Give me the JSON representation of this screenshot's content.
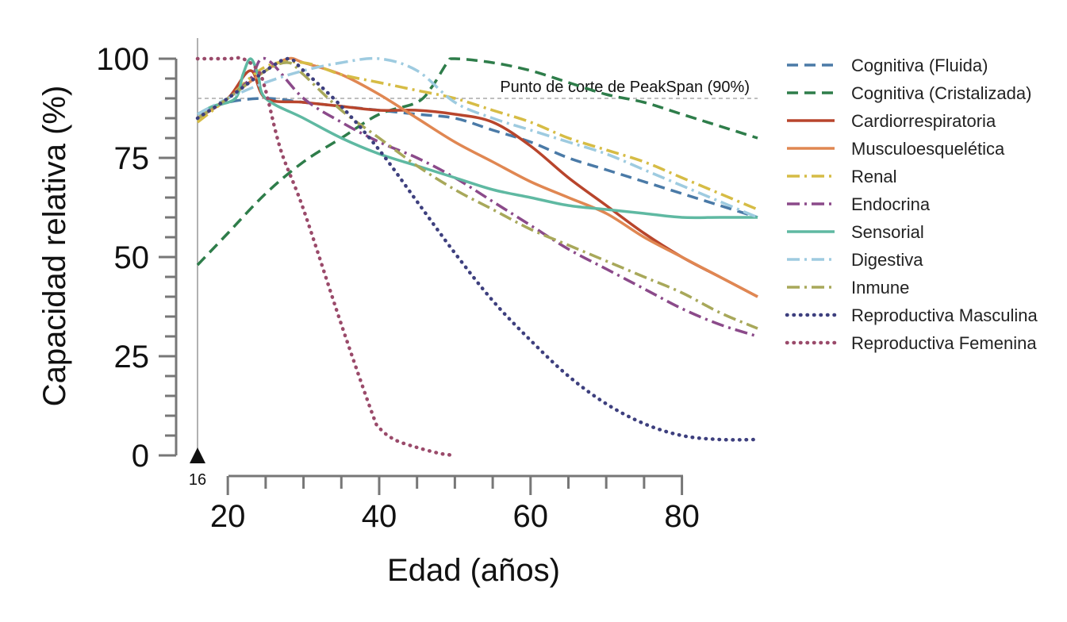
{
  "chart_data": {
    "type": "line",
    "title": "",
    "xlabel": "Edad (años)",
    "ylabel": "Capacidad relativa (%)",
    "xlim": [
      16,
      90
    ],
    "ylim": [
      0,
      100
    ],
    "x_ticks": [
      20,
      40,
      60,
      80
    ],
    "y_ticks": [
      0,
      25,
      50,
      75,
      100
    ],
    "x_start_marker": "16",
    "threshold": {
      "y": 90,
      "label": "Punto de corte de PeakSpan (90%)",
      "color": "#aaaaaa"
    },
    "grid": false,
    "legend_position": "right",
    "series": [
      {
        "name": "Cognitiva (Fluida)",
        "color": "#4a7aa7",
        "dash": "dashed",
        "x": [
          16,
          20,
          25,
          30,
          35,
          40,
          45,
          50,
          55,
          60,
          65,
          70,
          75,
          80,
          85,
          90
        ],
        "y": [
          86,
          89,
          90,
          89,
          88,
          87,
          86,
          85,
          82,
          79,
          75,
          72,
          69,
          66,
          63,
          60
        ]
      },
      {
        "name": "Cognitiva (Cristalizada)",
        "color": "#2e7d4a",
        "dash": "dashed",
        "x": [
          16,
          20,
          25,
          30,
          35,
          40,
          45,
          47,
          49,
          50,
          55,
          60,
          65,
          70,
          75,
          80,
          85,
          90
        ],
        "y": [
          48,
          56,
          66,
          74,
          80,
          86,
          89,
          93,
          99,
          100,
          99,
          97,
          94,
          91,
          89,
          86,
          83,
          80
        ]
      },
      {
        "name": "Cardiorrespiratoria",
        "color": "#b8452c",
        "dash": "solid",
        "x": [
          16,
          20,
          23,
          25,
          30,
          35,
          40,
          45,
          50,
          55,
          60,
          65,
          70,
          75,
          80,
          85,
          90
        ],
        "y": [
          85,
          90,
          97,
          90,
          89,
          88,
          87,
          87,
          86,
          84,
          78,
          70,
          63,
          56,
          50,
          45,
          40
        ]
      },
      {
        "name": "Musculoesquelética",
        "color": "#e08752",
        "dash": "solid",
        "x": [
          16,
          20,
          25,
          28,
          30,
          35,
          40,
          45,
          50,
          55,
          60,
          65,
          70,
          75,
          80,
          85,
          90
        ],
        "y": [
          85,
          90,
          97,
          100,
          99,
          96,
          91,
          85,
          79,
          74,
          69,
          65,
          61,
          55,
          50,
          45,
          40
        ]
      },
      {
        "name": "Renal",
        "color": "#d6bc45",
        "dash": "dashdot",
        "x": [
          16,
          20,
          25,
          30,
          35,
          40,
          45,
          50,
          55,
          60,
          65,
          70,
          75,
          80,
          85,
          90
        ],
        "y": [
          84,
          90,
          98,
          99,
          96,
          94,
          92,
          90,
          87,
          84,
          80,
          77,
          74,
          70,
          66,
          62
        ]
      },
      {
        "name": "Endocrina",
        "color": "#8b4a8a",
        "dash": "dashdot",
        "x": [
          16,
          20,
          23,
          25,
          30,
          35,
          40,
          45,
          50,
          55,
          60,
          65,
          70,
          75,
          80,
          85,
          90
        ],
        "y": [
          85,
          90,
          95,
          100,
          90,
          84,
          79,
          75,
          70,
          64,
          58,
          52,
          47,
          42,
          37,
          33,
          30
        ]
      },
      {
        "name": "Sensorial",
        "color": "#5fb9a2",
        "dash": "solid",
        "x": [
          16,
          18,
          21,
          22,
          23,
          24,
          25,
          30,
          35,
          40,
          45,
          50,
          55,
          60,
          65,
          70,
          75,
          80,
          85,
          90
        ],
        "y": [
          86,
          88,
          90,
          96,
          100,
          96,
          90,
          85,
          80,
          76,
          73,
          70,
          67,
          65,
          63,
          62,
          61,
          60,
          60,
          60
        ]
      },
      {
        "name": "Digestiva",
        "color": "#9ecbe0",
        "dash": "dashdot",
        "x": [
          16,
          20,
          25,
          30,
          35,
          40,
          45,
          50,
          55,
          60,
          65,
          70,
          75,
          80,
          85,
          90
        ],
        "y": [
          86,
          90,
          94,
          97,
          99,
          100,
          97,
          89,
          85,
          82,
          79,
          76,
          72,
          68,
          64,
          60
        ]
      },
      {
        "name": "Inmune",
        "color": "#a8a85a",
        "dash": "dashdot",
        "x": [
          16,
          20,
          25,
          28,
          30,
          35,
          40,
          45,
          50,
          55,
          60,
          65,
          70,
          75,
          80,
          85,
          90
        ],
        "y": [
          85,
          90,
          97,
          99,
          96,
          87,
          80,
          73,
          67,
          62,
          57,
          53,
          49,
          45,
          41,
          36,
          32
        ]
      },
      {
        "name": "Reproductiva Masculina",
        "color": "#3d3f7e",
        "dash": "dotted",
        "x": [
          16,
          20,
          25,
          28,
          30,
          35,
          40,
          45,
          50,
          55,
          60,
          65,
          70,
          75,
          80,
          85,
          90
        ],
        "y": [
          85,
          90,
          97,
          100,
          97,
          88,
          77,
          64,
          51,
          39,
          29,
          20,
          13,
          8,
          5,
          4,
          4
        ]
      },
      {
        "name": "Reproductiva Femenina",
        "color": "#9a4a6a",
        "dash": "dotted",
        "x": [
          16,
          20,
          22,
          24,
          25,
          27,
          30,
          35,
          39,
          40,
          42,
          45,
          48,
          50
        ],
        "y": [
          100,
          100,
          100,
          97,
          92,
          77,
          62,
          33,
          11,
          7,
          4,
          2,
          0.5,
          0
        ]
      }
    ]
  }
}
